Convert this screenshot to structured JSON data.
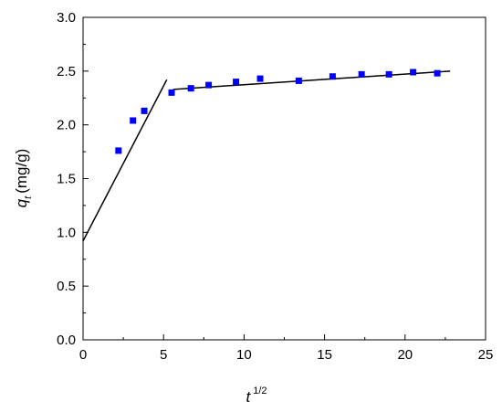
{
  "chart_data": {
    "type": "scatter",
    "xlabel": "t",
    "xlabel_superscript": "1/2",
    "ylabel": "q",
    "ylabel_subscript": "t",
    "ylabel_unit": "(mg/g)",
    "xlim": [
      0,
      25
    ],
    "ylim": [
      0.0,
      3.0
    ],
    "x_ticks": [
      "0",
      "5",
      "10",
      "15",
      "20",
      "25"
    ],
    "y_ticks": [
      "0.0",
      "0.5",
      "1.0",
      "1.5",
      "2.0",
      "2.5",
      "3.0"
    ],
    "grid": false,
    "marker_color": "#0000ff",
    "line_color": "#000000",
    "series": [
      {
        "marker": "square",
        "x": [
          2.2,
          3.1,
          3.8,
          5.5,
          6.7,
          7.8,
          9.5,
          11.0,
          13.4,
          15.5,
          17.3,
          19.0,
          20.5,
          22.0
        ],
        "y": [
          1.76,
          2.04,
          2.13,
          2.3,
          2.34,
          2.37,
          2.4,
          2.43,
          2.41,
          2.45,
          2.47,
          2.47,
          2.49,
          2.48
        ]
      }
    ],
    "fit_lines": [
      {
        "x": [
          0,
          5.2
        ],
        "y": [
          0.92,
          2.42
        ]
      },
      {
        "x": [
          5.6,
          22.8
        ],
        "y": [
          2.33,
          2.5
        ]
      }
    ]
  }
}
